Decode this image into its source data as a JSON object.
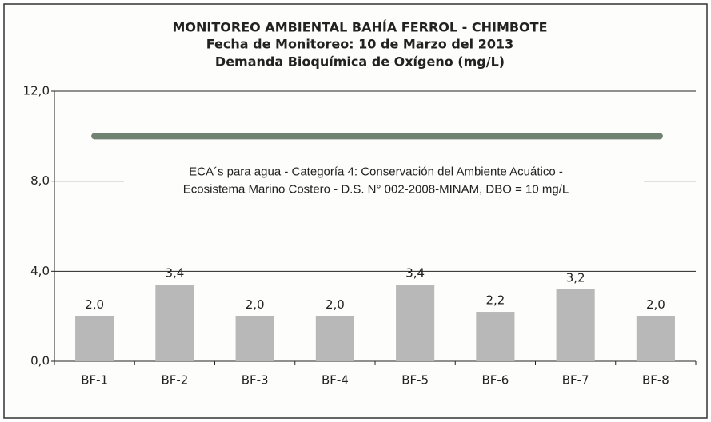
{
  "chart_data": {
    "type": "bar",
    "title": [
      "MONITOREO AMBIENTAL BAHÍA FERROL - CHIMBOTE",
      "Fecha de Monitoreo: 10 de Marzo del 2013",
      "Demanda Bioquímica de Oxígeno (mg/L)"
    ],
    "categories": [
      "BF-1",
      "BF-2",
      "BF-3",
      "BF-4",
      "BF-5",
      "BF-6",
      "BF-7",
      "BF-8"
    ],
    "values": [
      2.0,
      3.4,
      2.0,
      2.0,
      3.4,
      2.2,
      3.2,
      2.0
    ],
    "value_labels": [
      "2,0",
      "3,4",
      "2,0",
      "2,0",
      "3,4",
      "2,2",
      "3,2",
      "2,0"
    ],
    "color": "#b8b8b8",
    "ylim": [
      0,
      12
    ],
    "yticks": [
      {
        "value": 0,
        "label": "0,0"
      },
      {
        "value": 4,
        "label": "4,0"
      },
      {
        "value": 8,
        "label": "8,0"
      },
      {
        "value": 12,
        "label": "12,0"
      }
    ],
    "grid": true,
    "reference_value": 10,
    "reference_color": "#6f8370",
    "annotation": [
      "ECA´s para agua - Categoría 4: Conservación del Ambiente Acuático -",
      "Ecosistema Marino Costero - D.S. N° 002-2008-MINAM, DBO = 10 mg/L"
    ]
  }
}
